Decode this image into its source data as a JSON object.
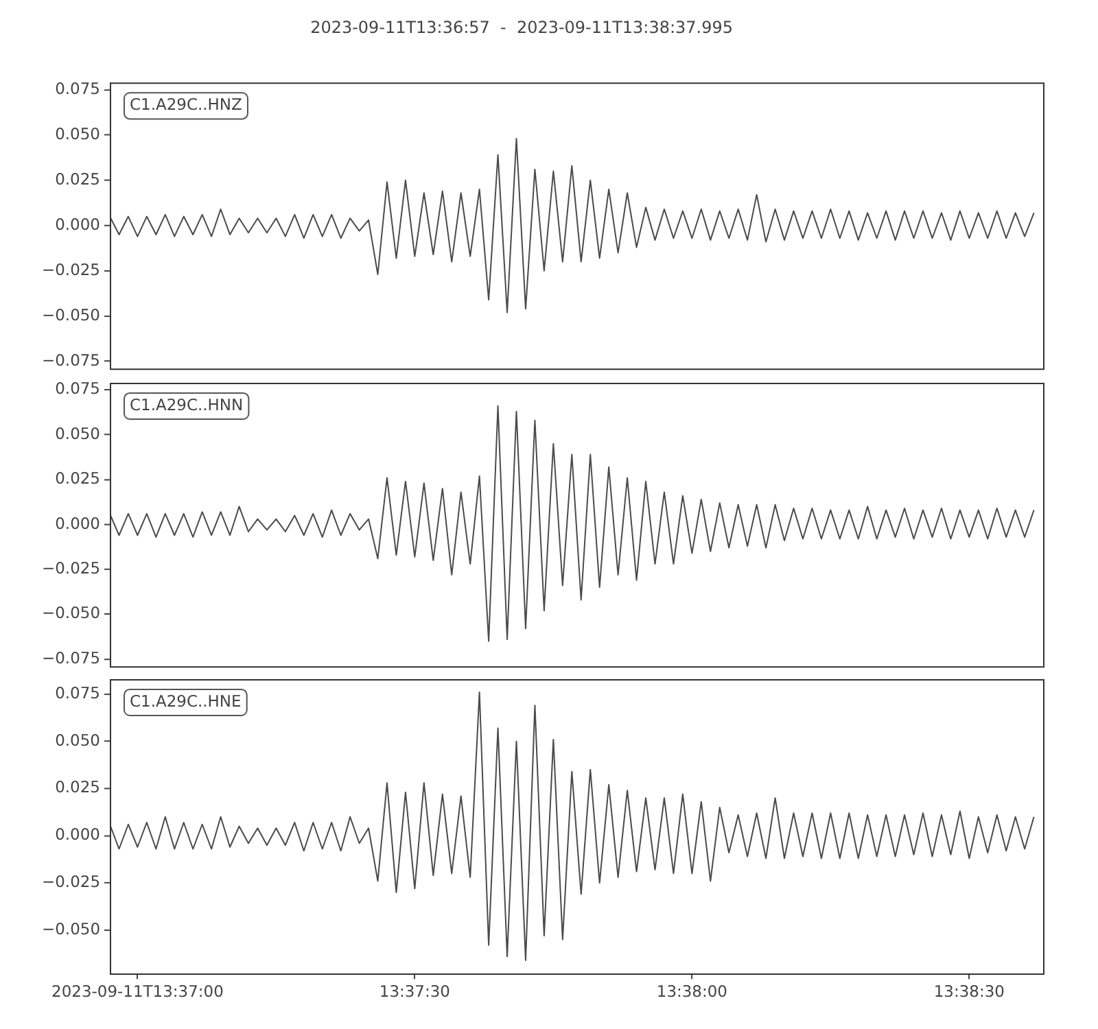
{
  "chart_data": [
    {
      "type": "line",
      "title": "2023-09-11T13:36:57  -  2023-09-11T13:38:37.995",
      "annotations": [
        "C1.A29C..HNZ"
      ],
      "color": "#4b4b4b",
      "tick_labels": "y",
      "xlim": [
        "2023-09-11T13:36:57",
        "2023-09-11T13:38:37.995"
      ],
      "ylim": [
        -0.079,
        0.079
      ],
      "yticks": [
        {
          "value": -0.075,
          "label": "−0.075"
        },
        {
          "value": -0.05,
          "label": "−0.050"
        },
        {
          "value": -0.025,
          "label": "−0.025"
        },
        {
          "value": 0,
          "label": "0.000"
        },
        {
          "value": 0.025,
          "label": "0.025"
        },
        {
          "value": 0.05,
          "label": "0.050"
        },
        {
          "value": 0.075,
          "label": "0.075"
        }
      ],
      "x": [
        "2023-09-11T13:36:57",
        "2023-09-11T13:36:58",
        "2023-09-11T13:36:59",
        "2023-09-11T13:37:00",
        "2023-09-11T13:37:01",
        "2023-09-11T13:37:02",
        "2023-09-11T13:37:03",
        "2023-09-11T13:37:04",
        "2023-09-11T13:37:05",
        "2023-09-11T13:37:06",
        "2023-09-11T13:37:07",
        "2023-09-11T13:37:08",
        "2023-09-11T13:37:09",
        "2023-09-11T13:37:10",
        "2023-09-11T13:37:11",
        "2023-09-11T13:37:12",
        "2023-09-11T13:37:13",
        "2023-09-11T13:37:14",
        "2023-09-11T13:37:15",
        "2023-09-11T13:37:16",
        "2023-09-11T13:37:17",
        "2023-09-11T13:37:18",
        "2023-09-11T13:37:19",
        "2023-09-11T13:37:20",
        "2023-09-11T13:37:21",
        "2023-09-11T13:37:22",
        "2023-09-11T13:37:23",
        "2023-09-11T13:37:24",
        "2023-09-11T13:37:25",
        "2023-09-11T13:37:26",
        "2023-09-11T13:37:27",
        "2023-09-11T13:37:28",
        "2023-09-11T13:37:29",
        "2023-09-11T13:37:30",
        "2023-09-11T13:37:31",
        "2023-09-11T13:37:32",
        "2023-09-11T13:37:33",
        "2023-09-11T13:37:34",
        "2023-09-11T13:37:35",
        "2023-09-11T13:37:36",
        "2023-09-11T13:37:37",
        "2023-09-11T13:37:38",
        "2023-09-11T13:37:39",
        "2023-09-11T13:37:40",
        "2023-09-11T13:37:41",
        "2023-09-11T13:37:42",
        "2023-09-11T13:37:43",
        "2023-09-11T13:37:44",
        "2023-09-11T13:37:45",
        "2023-09-11T13:37:46",
        "2023-09-11T13:37:47",
        "2023-09-11T13:37:48",
        "2023-09-11T13:37:49",
        "2023-09-11T13:37:50",
        "2023-09-11T13:37:51",
        "2023-09-11T13:37:52",
        "2023-09-11T13:37:53",
        "2023-09-11T13:37:54",
        "2023-09-11T13:37:55",
        "2023-09-11T13:37:56",
        "2023-09-11T13:37:57",
        "2023-09-11T13:37:58",
        "2023-09-11T13:37:59",
        "2023-09-11T13:38:00",
        "2023-09-11T13:38:01",
        "2023-09-11T13:38:02",
        "2023-09-11T13:38:03",
        "2023-09-11T13:38:04",
        "2023-09-11T13:38:05",
        "2023-09-11T13:38:06",
        "2023-09-11T13:38:07",
        "2023-09-11T13:38:08",
        "2023-09-11T13:38:09",
        "2023-09-11T13:38:10",
        "2023-09-11T13:38:11",
        "2023-09-11T13:38:12",
        "2023-09-11T13:38:13",
        "2023-09-11T13:38:14",
        "2023-09-11T13:38:15",
        "2023-09-11T13:38:16",
        "2023-09-11T13:38:17",
        "2023-09-11T13:38:18",
        "2023-09-11T13:38:19",
        "2023-09-11T13:38:20",
        "2023-09-11T13:38:21",
        "2023-09-11T13:38:22",
        "2023-09-11T13:38:23",
        "2023-09-11T13:38:24",
        "2023-09-11T13:38:25",
        "2023-09-11T13:38:26",
        "2023-09-11T13:38:27",
        "2023-09-11T13:38:28",
        "2023-09-11T13:38:29",
        "2023-09-11T13:38:30",
        "2023-09-11T13:38:31",
        "2023-09-11T13:38:32",
        "2023-09-11T13:38:33",
        "2023-09-11T13:38:34",
        "2023-09-11T13:38:35",
        "2023-09-11T13:38:36",
        "2023-09-11T13:38:37"
      ],
      "values": [
        0.005,
        -0.005,
        0.005,
        -0.006,
        0.005,
        -0.005,
        0.006,
        -0.006,
        0.005,
        -0.005,
        0.006,
        -0.006,
        0.009,
        -0.005,
        0.004,
        -0.004,
        0.004,
        -0.004,
        0.004,
        -0.006,
        0.006,
        -0.007,
        0.006,
        -0.006,
        0.006,
        -0.007,
        0.004,
        -0.003,
        0.003,
        -0.027,
        0.024,
        -0.018,
        0.025,
        -0.017,
        0.018,
        -0.016,
        0.019,
        -0.02,
        0.018,
        -0.017,
        0.02,
        -0.041,
        0.039,
        -0.048,
        0.048,
        -0.046,
        0.031,
        -0.025,
        0.03,
        -0.02,
        0.033,
        -0.02,
        0.025,
        -0.018,
        0.02,
        -0.015,
        0.018,
        -0.012,
        0.01,
        -0.008,
        0.009,
        -0.007,
        0.008,
        -0.007,
        0.009,
        -0.008,
        0.008,
        -0.007,
        0.009,
        -0.008,
        0.017,
        -0.009,
        0.009,
        -0.008,
        0.008,
        -0.007,
        0.008,
        -0.007,
        0.009,
        -0.007,
        0.008,
        -0.008,
        0.007,
        -0.007,
        0.008,
        -0.008,
        0.008,
        -0.007,
        0.008,
        -0.007,
        0.007,
        -0.008,
        0.008,
        -0.007,
        0.007,
        -0.007,
        0.008,
        -0.007,
        0.007,
        -0.006,
        0.007
      ]
    },
    {
      "type": "line",
      "annotations": [
        "C1.A29C..HNN"
      ],
      "color": "#4b4b4b",
      "tick_labels": "y",
      "xlim": [
        "2023-09-11T13:36:57",
        "2023-09-11T13:38:37.995"
      ],
      "ylim": [
        -0.079,
        0.079
      ],
      "yticks": [
        {
          "value": -0.075,
          "label": "−0.075"
        },
        {
          "value": -0.05,
          "label": "−0.050"
        },
        {
          "value": -0.025,
          "label": "−0.025"
        },
        {
          "value": 0,
          "label": "0.000"
        },
        {
          "value": 0.025,
          "label": "0.025"
        },
        {
          "value": 0.05,
          "label": "0.050"
        },
        {
          "value": 0.075,
          "label": "0.075"
        }
      ],
      "x": [
        "2023-09-11T13:36:57",
        "2023-09-11T13:36:58",
        "2023-09-11T13:36:59",
        "2023-09-11T13:37:00",
        "2023-09-11T13:37:01",
        "2023-09-11T13:37:02",
        "2023-09-11T13:37:03",
        "2023-09-11T13:37:04",
        "2023-09-11T13:37:05",
        "2023-09-11T13:37:06",
        "2023-09-11T13:37:07",
        "2023-09-11T13:37:08",
        "2023-09-11T13:37:09",
        "2023-09-11T13:37:10",
        "2023-09-11T13:37:11",
        "2023-09-11T13:37:12",
        "2023-09-11T13:37:13",
        "2023-09-11T13:37:14",
        "2023-09-11T13:37:15",
        "2023-09-11T13:37:16",
        "2023-09-11T13:37:17",
        "2023-09-11T13:37:18",
        "2023-09-11T13:37:19",
        "2023-09-11T13:37:20",
        "2023-09-11T13:37:21",
        "2023-09-11T13:37:22",
        "2023-09-11T13:37:23",
        "2023-09-11T13:37:24",
        "2023-09-11T13:37:25",
        "2023-09-11T13:37:26",
        "2023-09-11T13:37:27",
        "2023-09-11T13:37:28",
        "2023-09-11T13:37:29",
        "2023-09-11T13:37:30",
        "2023-09-11T13:37:31",
        "2023-09-11T13:37:32",
        "2023-09-11T13:37:33",
        "2023-09-11T13:37:34",
        "2023-09-11T13:37:35",
        "2023-09-11T13:37:36",
        "2023-09-11T13:37:37",
        "2023-09-11T13:37:38",
        "2023-09-11T13:37:39",
        "2023-09-11T13:37:40",
        "2023-09-11T13:37:41",
        "2023-09-11T13:37:42",
        "2023-09-11T13:37:43",
        "2023-09-11T13:37:44",
        "2023-09-11T13:37:45",
        "2023-09-11T13:37:46",
        "2023-09-11T13:37:47",
        "2023-09-11T13:37:48",
        "2023-09-11T13:37:49",
        "2023-09-11T13:37:50",
        "2023-09-11T13:37:51",
        "2023-09-11T13:37:52",
        "2023-09-11T13:37:53",
        "2023-09-11T13:37:54",
        "2023-09-11T13:37:55",
        "2023-09-11T13:37:56",
        "2023-09-11T13:37:57",
        "2023-09-11T13:37:58",
        "2023-09-11T13:37:59",
        "2023-09-11T13:38:00",
        "2023-09-11T13:38:01",
        "2023-09-11T13:38:02",
        "2023-09-11T13:38:03",
        "2023-09-11T13:38:04",
        "2023-09-11T13:38:05",
        "2023-09-11T13:38:06",
        "2023-09-11T13:38:07",
        "2023-09-11T13:38:08",
        "2023-09-11T13:38:09",
        "2023-09-11T13:38:10",
        "2023-09-11T13:38:11",
        "2023-09-11T13:38:12",
        "2023-09-11T13:38:13",
        "2023-09-11T13:38:14",
        "2023-09-11T13:38:15",
        "2023-09-11T13:38:16",
        "2023-09-11T13:38:17",
        "2023-09-11T13:38:18",
        "2023-09-11T13:38:19",
        "2023-09-11T13:38:20",
        "2023-09-11T13:38:21",
        "2023-09-11T13:38:22",
        "2023-09-11T13:38:23",
        "2023-09-11T13:38:24",
        "2023-09-11T13:38:25",
        "2023-09-11T13:38:26",
        "2023-09-11T13:38:27",
        "2023-09-11T13:38:28",
        "2023-09-11T13:38:29",
        "2023-09-11T13:38:30",
        "2023-09-11T13:38:31",
        "2023-09-11T13:38:32",
        "2023-09-11T13:38:33",
        "2023-09-11T13:38:34",
        "2023-09-11T13:38:35",
        "2023-09-11T13:38:36",
        "2023-09-11T13:38:37"
      ],
      "values": [
        0.006,
        -0.006,
        0.006,
        -0.006,
        0.006,
        -0.007,
        0.006,
        -0.006,
        0.006,
        -0.007,
        0.007,
        -0.006,
        0.007,
        -0.006,
        0.01,
        -0.004,
        0.003,
        -0.003,
        0.003,
        -0.004,
        0.005,
        -0.006,
        0.006,
        -0.007,
        0.008,
        -0.006,
        0.006,
        -0.003,
        0.003,
        -0.019,
        0.026,
        -0.017,
        0.024,
        -0.018,
        0.023,
        -0.02,
        0.02,
        -0.028,
        0.018,
        -0.022,
        0.027,
        -0.065,
        0.066,
        -0.064,
        0.063,
        -0.058,
        0.058,
        -0.048,
        0.045,
        -0.034,
        0.039,
        -0.042,
        0.039,
        -0.035,
        0.032,
        -0.028,
        0.026,
        -0.031,
        0.024,
        -0.022,
        0.018,
        -0.022,
        0.016,
        -0.016,
        0.014,
        -0.015,
        0.012,
        -0.013,
        0.011,
        -0.012,
        0.011,
        -0.013,
        0.011,
        -0.009,
        0.009,
        -0.008,
        0.009,
        -0.008,
        0.008,
        -0.008,
        0.008,
        -0.008,
        0.01,
        -0.008,
        0.008,
        -0.007,
        0.009,
        -0.008,
        0.008,
        -0.007,
        0.009,
        -0.008,
        0.008,
        -0.007,
        0.008,
        -0.008,
        0.009,
        -0.007,
        0.008,
        -0.007,
        0.008
      ]
    },
    {
      "type": "line",
      "annotations": [
        "C1.A29C..HNE"
      ],
      "color": "#4b4b4b",
      "xlim": [
        "2023-09-11T13:36:57",
        "2023-09-11T13:38:37.995"
      ],
      "xticks": [
        {
          "value": "2023-09-11T13:37:00",
          "label": "2023-09-11T13:37:00"
        },
        {
          "value": "2023-09-11T13:37:30",
          "label": "13:37:30"
        },
        {
          "value": "2023-09-11T13:38:00",
          "label": "13:38:00"
        },
        {
          "value": "2023-09-11T13:38:30",
          "label": "13:38:30"
        }
      ],
      "ylim": [
        -0.073,
        0.083
      ],
      "yticks": [
        {
          "value": -0.05,
          "label": "−0.050"
        },
        {
          "value": -0.025,
          "label": "−0.025"
        },
        {
          "value": 0,
          "label": "0.000"
        },
        {
          "value": 0.025,
          "label": "0.025"
        },
        {
          "value": 0.05,
          "label": "0.050"
        },
        {
          "value": 0.075,
          "label": "0.075"
        }
      ],
      "x": [
        "2023-09-11T13:36:57",
        "2023-09-11T13:36:58",
        "2023-09-11T13:36:59",
        "2023-09-11T13:37:00",
        "2023-09-11T13:37:01",
        "2023-09-11T13:37:02",
        "2023-09-11T13:37:03",
        "2023-09-11T13:37:04",
        "2023-09-11T13:37:05",
        "2023-09-11T13:37:06",
        "2023-09-11T13:37:07",
        "2023-09-11T13:37:08",
        "2023-09-11T13:37:09",
        "2023-09-11T13:37:10",
        "2023-09-11T13:37:11",
        "2023-09-11T13:37:12",
        "2023-09-11T13:37:13",
        "2023-09-11T13:37:14",
        "2023-09-11T13:37:15",
        "2023-09-11T13:37:16",
        "2023-09-11T13:37:17",
        "2023-09-11T13:37:18",
        "2023-09-11T13:37:19",
        "2023-09-11T13:37:20",
        "2023-09-11T13:37:21",
        "2023-09-11T13:37:22",
        "2023-09-11T13:37:23",
        "2023-09-11T13:37:24",
        "2023-09-11T13:37:25",
        "2023-09-11T13:37:26",
        "2023-09-11T13:37:27",
        "2023-09-11T13:37:28",
        "2023-09-11T13:37:29",
        "2023-09-11T13:37:30",
        "2023-09-11T13:37:31",
        "2023-09-11T13:37:32",
        "2023-09-11T13:37:33",
        "2023-09-11T13:37:34",
        "2023-09-11T13:37:35",
        "2023-09-11T13:37:36",
        "2023-09-11T13:37:37",
        "2023-09-11T13:37:38",
        "2023-09-11T13:37:39",
        "2023-09-11T13:37:40",
        "2023-09-11T13:37:41",
        "2023-09-11T13:37:42",
        "2023-09-11T13:37:43",
        "2023-09-11T13:37:44",
        "2023-09-11T13:37:45",
        "2023-09-11T13:37:46",
        "2023-09-11T13:37:47",
        "2023-09-11T13:37:48",
        "2023-09-11T13:37:49",
        "2023-09-11T13:37:50",
        "2023-09-11T13:37:51",
        "2023-09-11T13:37:52",
        "2023-09-11T13:37:53",
        "2023-09-11T13:37:54",
        "2023-09-11T13:37:55",
        "2023-09-11T13:37:56",
        "2023-09-11T13:37:57",
        "2023-09-11T13:37:58",
        "2023-09-11T13:37:59",
        "2023-09-11T13:38:00",
        "2023-09-11T13:38:01",
        "2023-09-11T13:38:02",
        "2023-09-11T13:38:03",
        "2023-09-11T13:38:04",
        "2023-09-11T13:38:05",
        "2023-09-11T13:38:06",
        "2023-09-11T13:38:07",
        "2023-09-11T13:38:08",
        "2023-09-11T13:38:09",
        "2023-09-11T13:38:10",
        "2023-09-11T13:38:11",
        "2023-09-11T13:38:12",
        "2023-09-11T13:38:13",
        "2023-09-11T13:38:14",
        "2023-09-11T13:38:15",
        "2023-09-11T13:38:16",
        "2023-09-11T13:38:17",
        "2023-09-11T13:38:18",
        "2023-09-11T13:38:19",
        "2023-09-11T13:38:20",
        "2023-09-11T13:38:21",
        "2023-09-11T13:38:22",
        "2023-09-11T13:38:23",
        "2023-09-11T13:38:24",
        "2023-09-11T13:38:25",
        "2023-09-11T13:38:26",
        "2023-09-11T13:38:27",
        "2023-09-11T13:38:28",
        "2023-09-11T13:38:29",
        "2023-09-11T13:38:30",
        "2023-09-11T13:38:31",
        "2023-09-11T13:38:32",
        "2023-09-11T13:38:33",
        "2023-09-11T13:38:34",
        "2023-09-11T13:38:35",
        "2023-09-11T13:38:36",
        "2023-09-11T13:38:37"
      ],
      "values": [
        0.006,
        -0.007,
        0.006,
        -0.006,
        0.007,
        -0.007,
        0.01,
        -0.007,
        0.007,
        -0.007,
        0.006,
        -0.007,
        0.01,
        -0.006,
        0.005,
        -0.004,
        0.004,
        -0.005,
        0.004,
        -0.005,
        0.007,
        -0.008,
        0.007,
        -0.007,
        0.007,
        -0.008,
        0.01,
        -0.004,
        0.004,
        -0.024,
        0.028,
        -0.03,
        0.023,
        -0.028,
        0.028,
        -0.021,
        0.022,
        -0.02,
        0.021,
        -0.022,
        0.076,
        -0.058,
        0.057,
        -0.064,
        0.05,
        -0.066,
        0.069,
        -0.053,
        0.051,
        -0.055,
        0.034,
        -0.031,
        0.035,
        -0.025,
        0.027,
        -0.022,
        0.024,
        -0.019,
        0.02,
        -0.018,
        0.02,
        -0.02,
        0.022,
        -0.02,
        0.018,
        -0.024,
        0.015,
        -0.009,
        0.011,
        -0.011,
        0.012,
        -0.012,
        0.02,
        -0.012,
        0.012,
        -0.011,
        0.012,
        -0.012,
        0.012,
        -0.012,
        0.012,
        -0.012,
        0.011,
        -0.011,
        0.011,
        -0.011,
        0.011,
        -0.01,
        0.012,
        -0.011,
        0.011,
        -0.01,
        0.013,
        -0.012,
        0.01,
        -0.009,
        0.011,
        -0.008,
        0.01,
        -0.007,
        0.01
      ]
    }
  ]
}
